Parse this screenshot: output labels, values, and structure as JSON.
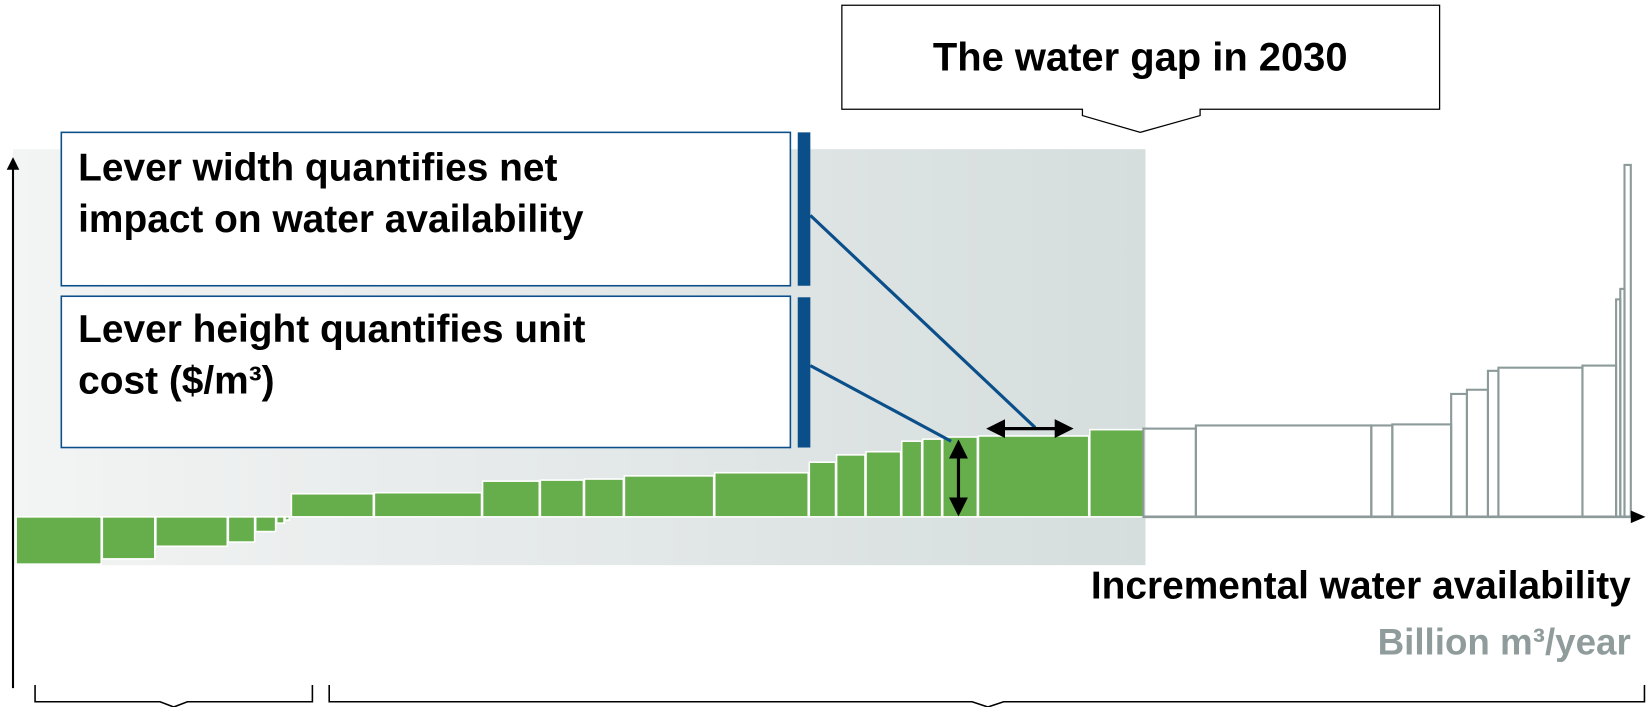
{
  "callout": {
    "title": "The water gap in 2030"
  },
  "legend": {
    "width_note": [
      "Lever width quantifies net",
      "impact on water availability"
    ],
    "height_note": [
      "Lever height quantifies unit",
      "cost ($/m³)"
    ]
  },
  "axis": {
    "x_label": "Incremental water availability",
    "x_unit": "Billion m³/year"
  }
}
